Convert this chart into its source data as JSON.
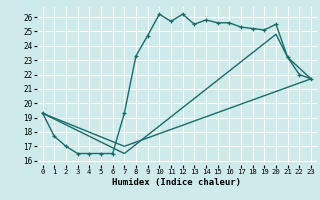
{
  "xlabel": "Humidex (Indice chaleur)",
  "background_color": "#ceeaea",
  "grid_color": "#ffffff",
  "line_color": "#1a6b6b",
  "xlim": [
    -0.5,
    23.5
  ],
  "ylim": [
    15.7,
    26.7
  ],
  "yticks": [
    16,
    17,
    18,
    19,
    20,
    21,
    22,
    23,
    24,
    25,
    26
  ],
  "xticks": [
    0,
    1,
    2,
    3,
    4,
    5,
    6,
    7,
    8,
    9,
    10,
    11,
    12,
    13,
    14,
    15,
    16,
    17,
    18,
    19,
    20,
    21,
    22,
    23
  ],
  "series": [
    {
      "x": [
        0,
        1,
        2,
        3,
        4,
        5,
        6,
        7,
        8,
        9,
        10,
        11,
        12,
        13,
        14,
        15,
        16,
        17,
        18,
        19,
        20,
        21,
        22,
        23
      ],
      "y": [
        19.3,
        17.7,
        17.0,
        16.5,
        16.5,
        16.5,
        16.5,
        19.3,
        23.3,
        24.7,
        26.2,
        25.7,
        26.2,
        25.5,
        25.8,
        25.6,
        25.6,
        25.3,
        25.2,
        25.1,
        25.5,
        23.2,
        22.0,
        21.7
      ],
      "marker": true,
      "lw": 1.0
    },
    {
      "x": [
        0,
        7,
        23
      ],
      "y": [
        19.3,
        17.0,
        21.7
      ],
      "marker": false,
      "lw": 1.0
    },
    {
      "x": [
        0,
        7,
        20,
        21,
        23
      ],
      "y": [
        19.3,
        16.5,
        24.8,
        23.2,
        21.7
      ],
      "marker": false,
      "lw": 1.0
    }
  ]
}
